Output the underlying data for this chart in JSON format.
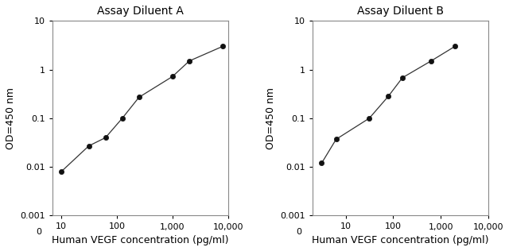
{
  "panel_A": {
    "title": "Assay Diluent A",
    "x": [
      10,
      31.25,
      62.5,
      125,
      250,
      1000,
      2000,
      8000
    ],
    "y": [
      0.008,
      0.027,
      0.04,
      0.1,
      0.27,
      0.72,
      1.5,
      3.0
    ],
    "xlabel": "Human VEGF concentration (pg/ml)",
    "ylabel": "OD=450 nm",
    "xlim": [
      7,
      10000
    ],
    "ylim": [
      0.001,
      10
    ],
    "xticks": [
      10,
      100,
      1000,
      10000
    ],
    "xtick_labels": [
      "10",
      "100",
      "1,000",
      "10,000"
    ],
    "yticks": [
      0.001,
      0.01,
      0.1,
      1,
      10
    ],
    "ytick_labels": [
      "0.001",
      "0.01",
      "0.1",
      "1",
      "10"
    ]
  },
  "panel_B": {
    "title": "Assay Diluent B",
    "x": [
      3.1,
      6.25,
      31.25,
      78.1,
      156,
      625,
      2000
    ],
    "y": [
      0.012,
      0.037,
      0.1,
      0.28,
      0.68,
      1.5,
      3.0
    ],
    "xlabel": "Human VEGF concentration (pg/ml)",
    "ylabel": "OD=450 nm",
    "xlim": [
      2,
      10000
    ],
    "ylim": [
      0.001,
      10
    ],
    "xticks": [
      10,
      100,
      1000,
      10000
    ],
    "xtick_labels": [
      "10",
      "100",
      "1,000",
      "10,000"
    ],
    "yticks": [
      0.001,
      0.01,
      0.1,
      1,
      10
    ],
    "ytick_labels": [
      "0.001",
      "0.01",
      "0.1",
      "1",
      "10"
    ]
  },
  "line_color": "#333333",
  "marker_color": "#111111",
  "bg_color": "#ffffff",
  "title_fontsize": 10,
  "label_fontsize": 9,
  "tick_fontsize": 8
}
